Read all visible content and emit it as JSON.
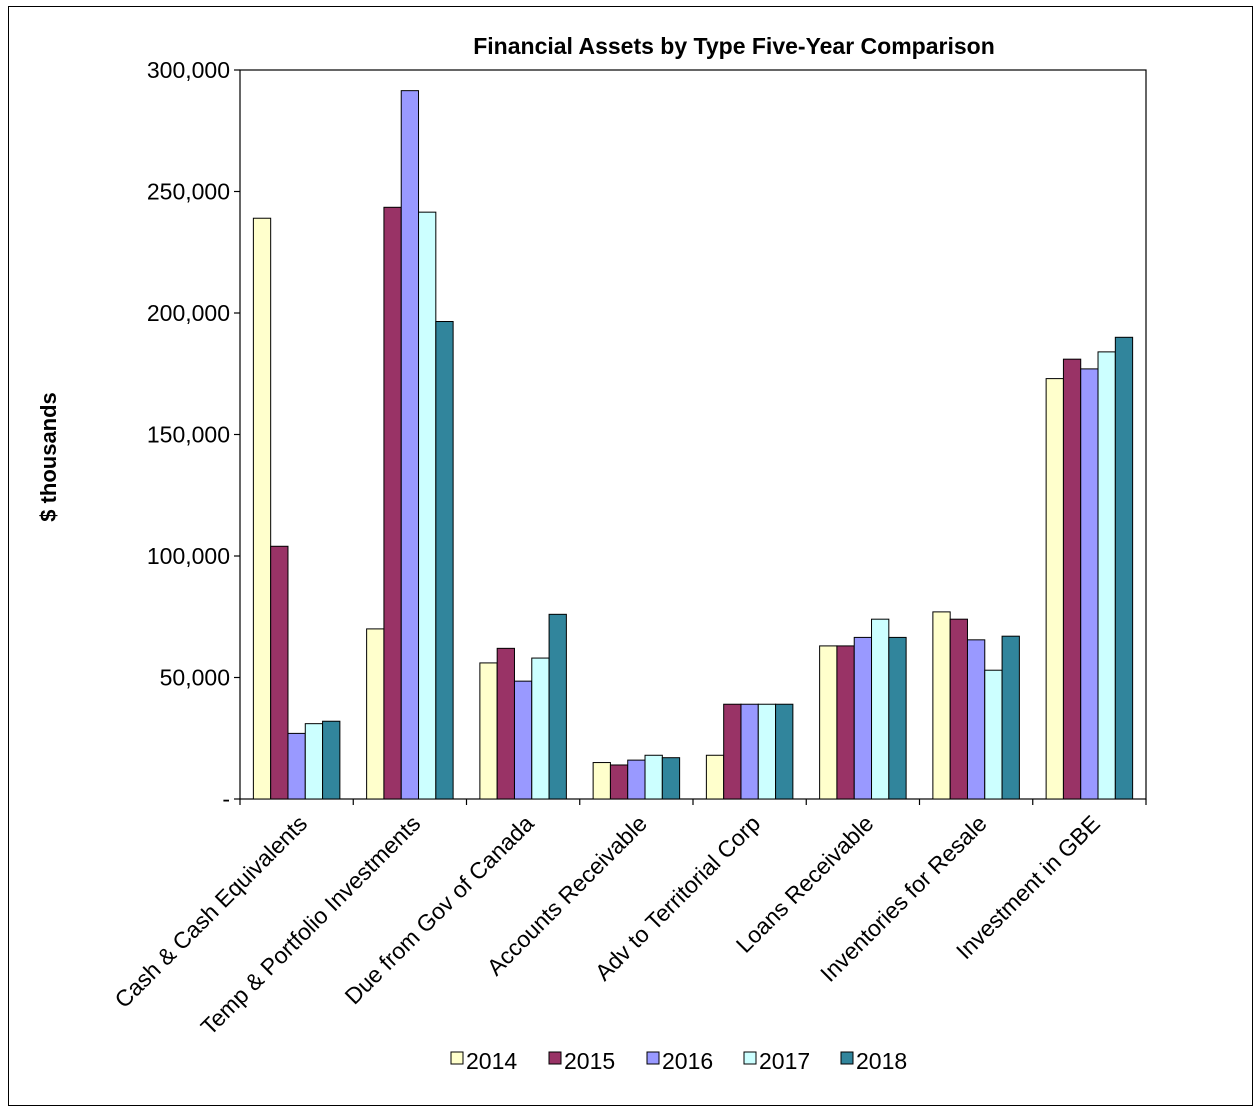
{
  "chart_data": {
    "type": "bar",
    "title": "Financial Assets by Type Five-Year Comparison",
    "xlabel": "",
    "ylabel": "$ thousands",
    "ylim": [
      0,
      300000
    ],
    "yticks": [
      0,
      50000,
      100000,
      150000,
      200000,
      250000,
      300000
    ],
    "ytick_labels": [
      "-",
      "50,000",
      "100,000",
      "150,000",
      "200,000",
      "250,000",
      "300,000"
    ],
    "grid": false,
    "legend_position": "bottom",
    "categories": [
      "Cash & Cash Equivalents",
      "Temp & Portfolio Investments",
      "Due from Gov of Canada",
      "Accounts Receivable",
      "Adv to Territorial Corp",
      "Loans  Receivable",
      "Inventories for Resale",
      "Investment in GBE"
    ],
    "series": [
      {
        "name": "2014",
        "color": "#FFFFCC",
        "values": [
          239000,
          70000,
          56000,
          15000,
          18000,
          63000,
          77000,
          173000
        ]
      },
      {
        "name": "2015",
        "color": "#993366",
        "values": [
          104000,
          243500,
          62000,
          14000,
          39000,
          63000,
          74000,
          181000
        ]
      },
      {
        "name": "2016",
        "color": "#9999FF",
        "values": [
          27000,
          291500,
          48500,
          16000,
          39000,
          66500,
          65500,
          177000
        ]
      },
      {
        "name": "2017",
        "color": "#CCFFFF",
        "values": [
          31000,
          241500,
          58000,
          18000,
          39000,
          74000,
          53000,
          184000
        ]
      },
      {
        "name": "2018",
        "color": "#31859C",
        "values": [
          32000,
          196500,
          76000,
          17000,
          39000,
          66500,
          67000,
          190000
        ]
      }
    ]
  }
}
